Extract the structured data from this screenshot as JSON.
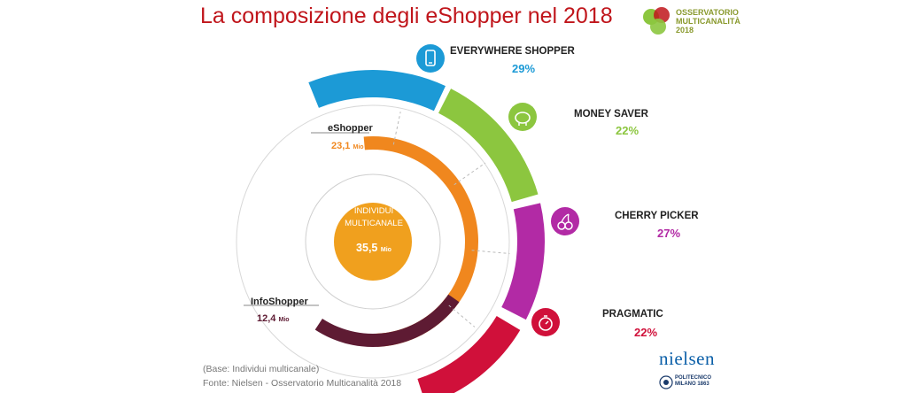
{
  "title": "La composizione degli eShopper nel 2018",
  "logo": {
    "line1": "OSSERVATORIO",
    "line2": "MULTICANALITÀ",
    "line3": "2018"
  },
  "chart_data": {
    "type": "nested-donut",
    "title": "La composizione degli eShopper nel 2018",
    "center": {
      "label_line1": "INDIVIDUI",
      "label_line2": "MULTICANALE",
      "value": "35,5",
      "unit": "Mio"
    },
    "inner_groups": [
      {
        "name": "eShopper",
        "value": "23,1",
        "unit": "Mio",
        "color": "#f0871e"
      },
      {
        "name": "InfoShopper",
        "value": "12,4",
        "unit": "Mio",
        "color": "#5e1b33"
      }
    ],
    "segments": [
      {
        "name": "EVERYWHERE SHOPPER",
        "percent": 29,
        "label": "29%",
        "color": "#1c9ad6",
        "icon": "smartphone-icon"
      },
      {
        "name": "MONEY SAVER",
        "percent": 22,
        "label": "22%",
        "color": "#8cc63f",
        "icon": "piggy-bank-icon"
      },
      {
        "name": "CHERRY PICKER",
        "percent": 27,
        "label": "27%",
        "color": "#b22aa5",
        "icon": "cherry-icon"
      },
      {
        "name": "PRAGMATIC",
        "percent": 22,
        "label": "22%",
        "color": "#d0103a",
        "icon": "stopwatch-icon"
      }
    ]
  },
  "notes": {
    "base": "(Base: Individui multicanale)",
    "source": "Fonte: Nielsen - Osservatorio Multicanalità 2018"
  },
  "brands": {
    "nielsen": "nielsen",
    "polimi_line1": "POLITECNICO",
    "polimi_line2": "MILANO 1863"
  },
  "colors": {
    "title": "#c0151b",
    "center": "#f0a01e",
    "ring_inner": "#f0871e",
    "info": "#5e1b33"
  }
}
